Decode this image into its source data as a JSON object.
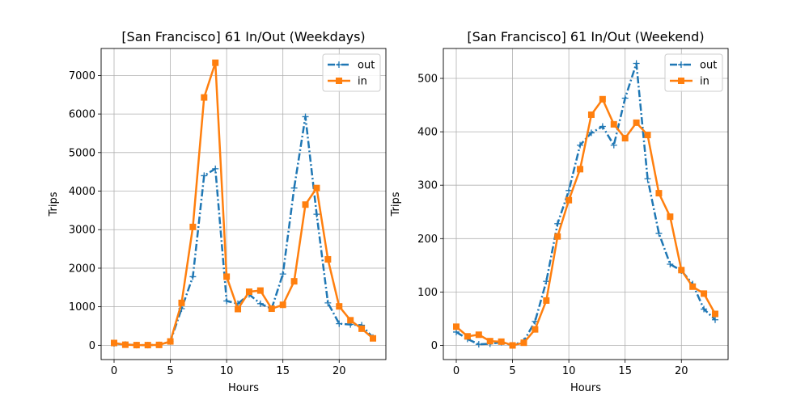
{
  "chart_data": [
    {
      "type": "line",
      "title": "[San Francisco] 61 In/Out (Weekdays)",
      "xlabel": "Hours",
      "ylabel": "Trips",
      "xlim": [
        -1.15,
        24.15
      ],
      "ylim": [
        -370,
        7700
      ],
      "xticks": [
        0,
        5,
        10,
        15,
        20
      ],
      "yticks": [
        0,
        1000,
        2000,
        3000,
        4000,
        5000,
        6000,
        7000
      ],
      "grid": true,
      "legend_position": "top-right",
      "x": [
        0,
        1,
        2,
        3,
        4,
        5,
        6,
        7,
        8,
        9,
        10,
        11,
        12,
        13,
        14,
        15,
        16,
        17,
        18,
        19,
        20,
        21,
        22,
        23
      ],
      "series": [
        {
          "name": "out",
          "color": "#1f77b4",
          "style": "dashdot",
          "marker": "plus",
          "values": [
            50,
            20,
            5,
            5,
            10,
            100,
            950,
            1780,
            4400,
            4580,
            1150,
            1080,
            1320,
            1080,
            950,
            1850,
            4080,
            5930,
            3400,
            1100,
            560,
            540,
            520,
            200
          ]
        },
        {
          "name": "in",
          "color": "#ff7f0e",
          "style": "solid",
          "marker": "square",
          "values": [
            60,
            15,
            5,
            5,
            10,
            100,
            1100,
            3070,
            6430,
            7330,
            1780,
            940,
            1390,
            1420,
            950,
            1050,
            1660,
            3650,
            4080,
            2230,
            1010,
            650,
            430,
            180
          ]
        }
      ]
    },
    {
      "type": "line",
      "title": "[San Francisco] 61 In/Out (Weekend)",
      "xlabel": "Hours",
      "ylabel": "Trips",
      "xlim": [
        -1.15,
        24.15
      ],
      "ylim": [
        -26.5,
        556
      ],
      "xticks": [
        0,
        5,
        10,
        15,
        20
      ],
      "yticks": [
        0,
        100,
        200,
        300,
        400,
        500
      ],
      "grid": true,
      "legend_position": "top-right",
      "x": [
        0,
        1,
        2,
        3,
        4,
        5,
        6,
        7,
        8,
        9,
        10,
        11,
        12,
        13,
        14,
        15,
        16,
        17,
        18,
        19,
        20,
        21,
        22,
        23
      ],
      "series": [
        {
          "name": "out",
          "color": "#1f77b4",
          "style": "dashdot",
          "marker": "plus",
          "values": [
            25,
            12,
            2,
            3,
            6,
            0,
            8,
            45,
            120,
            228,
            290,
            375,
            398,
            410,
            375,
            463,
            528,
            312,
            210,
            152,
            140,
            115,
            68,
            48
          ]
        },
        {
          "name": "in",
          "color": "#ff7f0e",
          "style": "solid",
          "marker": "square",
          "values": [
            35,
            17,
            20,
            8,
            7,
            0,
            5,
            30,
            84,
            204,
            272,
            330,
            432,
            461,
            414,
            388,
            417,
            394,
            285,
            241,
            141,
            110,
            97,
            59
          ]
        }
      ]
    }
  ]
}
